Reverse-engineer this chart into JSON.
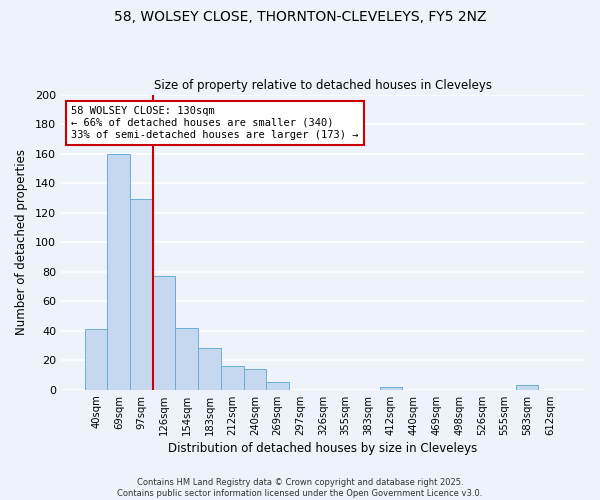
{
  "title_line1": "58, WOLSEY CLOSE, THORNTON-CLEVELEYS, FY5 2NZ",
  "title_line2": "Size of property relative to detached houses in Cleveleys",
  "xlabel": "Distribution of detached houses by size in Cleveleys",
  "ylabel": "Number of detached properties",
  "bar_labels": [
    "40sqm",
    "69sqm",
    "97sqm",
    "126sqm",
    "154sqm",
    "183sqm",
    "212sqm",
    "240sqm",
    "269sqm",
    "297sqm",
    "326sqm",
    "355sqm",
    "383sqm",
    "412sqm",
    "440sqm",
    "469sqm",
    "498sqm",
    "526sqm",
    "555sqm",
    "583sqm",
    "612sqm"
  ],
  "bar_values": [
    41,
    160,
    129,
    77,
    42,
    28,
    16,
    14,
    5,
    0,
    0,
    0,
    0,
    2,
    0,
    0,
    0,
    0,
    0,
    3,
    0
  ],
  "bar_color": "#c5d8f0",
  "bar_edge_color": "#6baed6",
  "vline_color": "#cc0000",
  "annotation_title": "58 WOLSEY CLOSE: 130sqm",
  "annotation_line2": "← 66% of detached houses are smaller (340)",
  "annotation_line3": "33% of semi-detached houses are larger (173) →",
  "annotation_box_color": "#ffffff",
  "annotation_box_edge": "#cc0000",
  "ylim": [
    0,
    200
  ],
  "yticks": [
    0,
    20,
    40,
    60,
    80,
    100,
    120,
    140,
    160,
    180,
    200
  ],
  "footnote_line1": "Contains HM Land Registry data © Crown copyright and database right 2025.",
  "footnote_line2": "Contains public sector information licensed under the Open Government Licence v3.0.",
  "bg_color": "#eef2fb"
}
